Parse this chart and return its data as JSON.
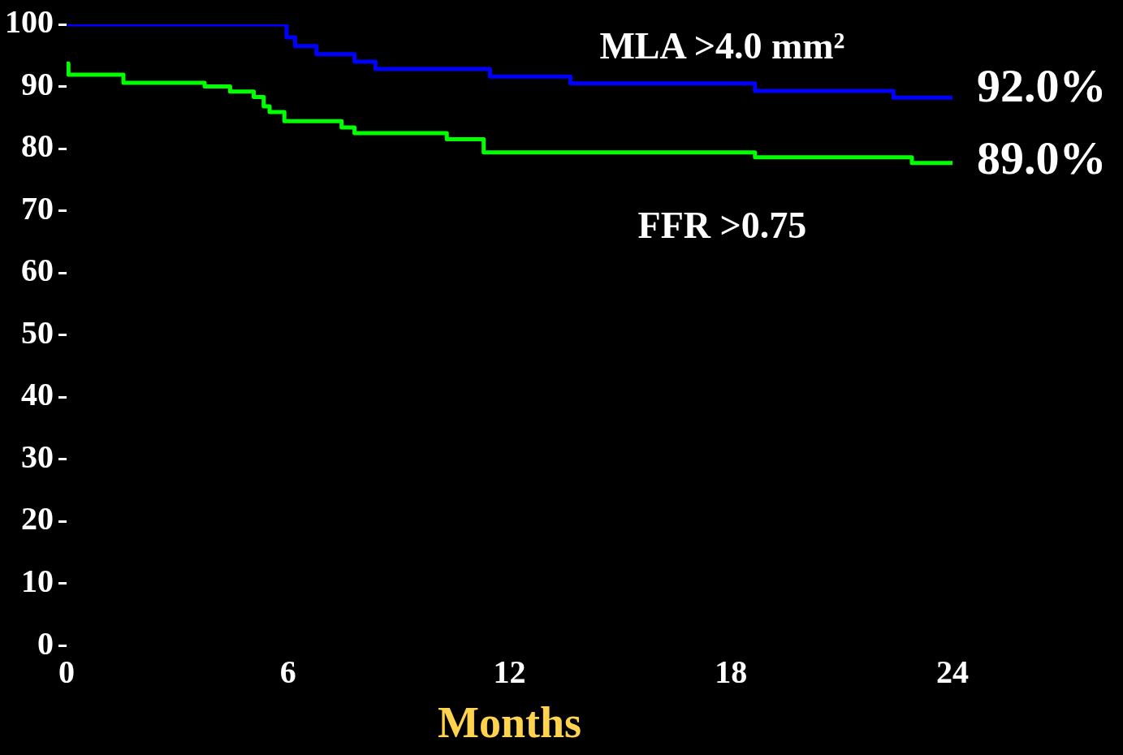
{
  "chart_data": {
    "type": "step",
    "xlabel": "Months",
    "xlim": [
      0,
      24
    ],
    "xticks": [
      0,
      6,
      12,
      18,
      24
    ],
    "ylim": [
      0,
      100
    ],
    "yticks": [
      0,
      10,
      20,
      30,
      40,
      50,
      60,
      70,
      80,
      90,
      100
    ],
    "grid": false,
    "legend": false,
    "marker": "none",
    "line_style": "solid",
    "series": [
      {
        "name": "MLA >4.0 mm²",
        "color": "#0000ff",
        "x": [
          0,
          5.96,
          6.19,
          6.77,
          7.8,
          8.37,
          11.47,
          13.65,
          18.65,
          22.4,
          24
        ],
        "values": [
          100,
          97.9,
          96.5,
          95.2,
          94,
          92.8,
          91.6,
          90.5,
          89.3,
          88.2,
          88.2
        ]
      },
      {
        "name": "FFR >0.75",
        "color": "#00ff00",
        "x": [
          0,
          0.05,
          1.54,
          3.74,
          4.43,
          5.07,
          5.34,
          5.5,
          5.9,
          7.45,
          7.8,
          10.3,
          11.3,
          18.65,
          22.9,
          24
        ],
        "values": [
          93.7,
          91.9,
          90.6,
          90,
          89.2,
          88.3,
          86.8,
          85.9,
          84.4,
          83.4,
          82.5,
          81.5,
          79.4,
          78.6,
          77.7,
          77.7
        ]
      }
    ],
    "annotations": [
      "92.0%",
      "89.0%"
    ]
  }
}
